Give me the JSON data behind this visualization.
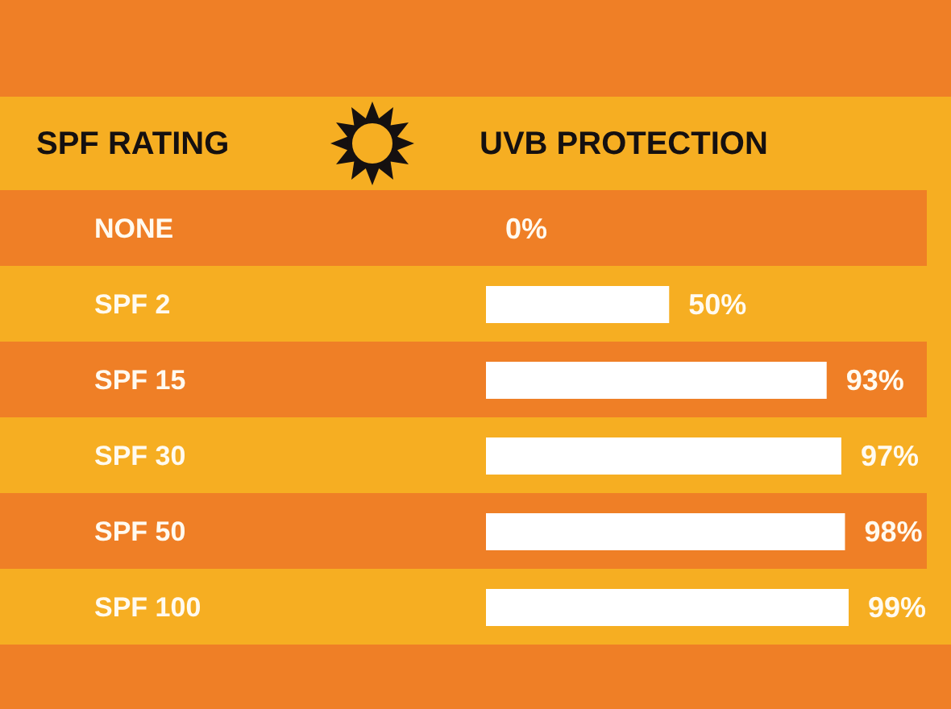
{
  "chart_data": {
    "type": "bar",
    "orientation": "horizontal",
    "ylabel": "SPF RATING",
    "xlabel": "UVB PROTECTION",
    "categories": [
      "NONE",
      "SPF 2",
      "SPF 15",
      "SPF 30",
      "SPF 50",
      "SPF 100"
    ],
    "values": [
      0,
      50,
      93,
      97,
      98,
      99
    ],
    "color": "#ffffff",
    "value_labels": [
      "0%",
      "50%",
      "93%",
      "97%",
      "98%",
      "99%"
    ],
    "tick_labels": "y"
  }
}
